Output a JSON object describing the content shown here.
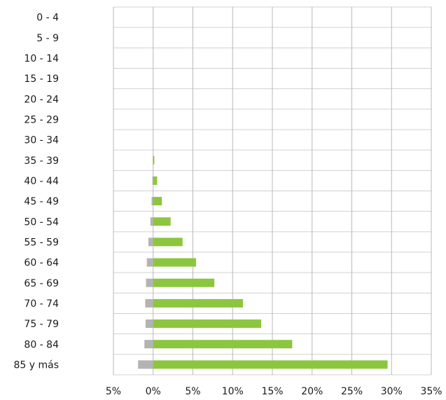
{
  "chart_data": {
    "type": "bar",
    "orientation": "horizontal",
    "categories": [
      "0 - 4",
      "5 - 9",
      "10 - 14",
      "15 - 19",
      "20 - 24",
      "25 - 29",
      "30 - 34",
      "35 - 39",
      "40 - 44",
      "45 - 49",
      "50 - 54",
      "55 - 59",
      "60 - 64",
      "65 - 69",
      "70 - 74",
      "75 - 79",
      "80 - 84",
      "85 y más"
    ],
    "series": [
      {
        "color": "#b3b3b3",
        "values": [
          0,
          0,
          0,
          0,
          0,
          0,
          0,
          -0.05,
          -0.1,
          -0.2,
          -0.35,
          -0.6,
          -0.8,
          -0.9,
          -1.0,
          -0.95,
          -1.1,
          -1.9
        ]
      },
      {
        "color": "#8cc63f",
        "values": [
          0,
          0,
          0,
          0,
          0,
          0,
          0,
          0.15,
          0.5,
          1.1,
          2.2,
          3.7,
          5.4,
          7.7,
          11.3,
          13.6,
          17.5,
          29.5
        ]
      }
    ],
    "xlim": [
      -5,
      35
    ],
    "xticks": [
      -5,
      0,
      5,
      10,
      15,
      20,
      25,
      30,
      35
    ],
    "xtick_labels": [
      "5%",
      "0%",
      "5%",
      "10%",
      "15%",
      "20%",
      "25%",
      "30%",
      "35%"
    ],
    "grid": true,
    "title": "",
    "xlabel": "",
    "ylabel": ""
  }
}
